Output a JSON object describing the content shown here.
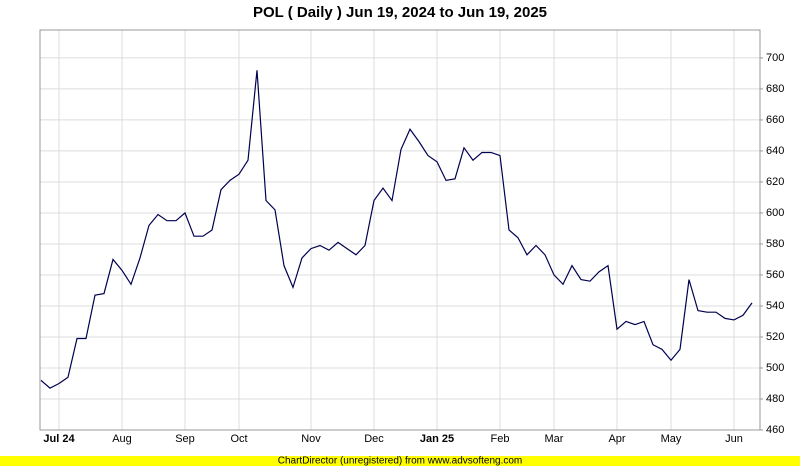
{
  "chart_data": {
    "type": "line",
    "title": "POL ( Daily ) Jun 19, 2024 to Jun 19, 2025",
    "footer": "ChartDirector (unregistered) from www.advsofteng.com",
    "categories": [
      null,
      null,
      "Jul 24",
      null,
      null,
      null,
      null,
      null,
      null,
      "Aug",
      null,
      null,
      null,
      null,
      null,
      null,
      "Sep",
      null,
      null,
      null,
      null,
      null,
      "Oct",
      null,
      null,
      null,
      null,
      null,
      null,
      null,
      "Nov",
      null,
      null,
      null,
      null,
      null,
      null,
      "Dec",
      null,
      null,
      null,
      null,
      null,
      null,
      "Jan 25",
      null,
      null,
      null,
      null,
      null,
      null,
      "Feb",
      null,
      null,
      null,
      null,
      null,
      "Mar",
      null,
      null,
      null,
      null,
      null,
      null,
      "Apr",
      null,
      null,
      null,
      null,
      null,
      "May",
      null,
      null,
      null,
      null,
      null,
      null,
      "Jun",
      null,
      null
    ],
    "series": [
      {
        "name": "POL",
        "color": "#000050",
        "values": [
          492,
          487,
          490,
          494,
          519,
          519,
          547,
          548,
          570,
          563,
          554,
          571,
          592,
          599,
          595,
          595,
          600,
          585,
          585,
          589,
          615,
          621,
          625,
          634,
          692,
          608,
          602,
          566,
          552,
          571,
          577,
          579,
          576,
          581,
          577,
          573,
          579,
          608,
          616,
          608,
          641,
          654,
          646,
          637,
          633,
          621,
          622,
          642,
          634,
          639,
          639,
          637,
          589,
          584,
          573,
          579,
          573,
          560,
          554,
          566,
          557,
          556,
          562,
          566,
          525,
          530,
          528,
          530,
          515,
          512,
          505,
          512,
          557,
          537,
          536,
          536,
          532,
          531,
          534,
          542
        ]
      }
    ],
    "ylim": [
      460,
      718
    ],
    "yticks": [
      460,
      480,
      500,
      520,
      540,
      560,
      580,
      600,
      620,
      640,
      660,
      680,
      700
    ],
    "grid": true
  }
}
